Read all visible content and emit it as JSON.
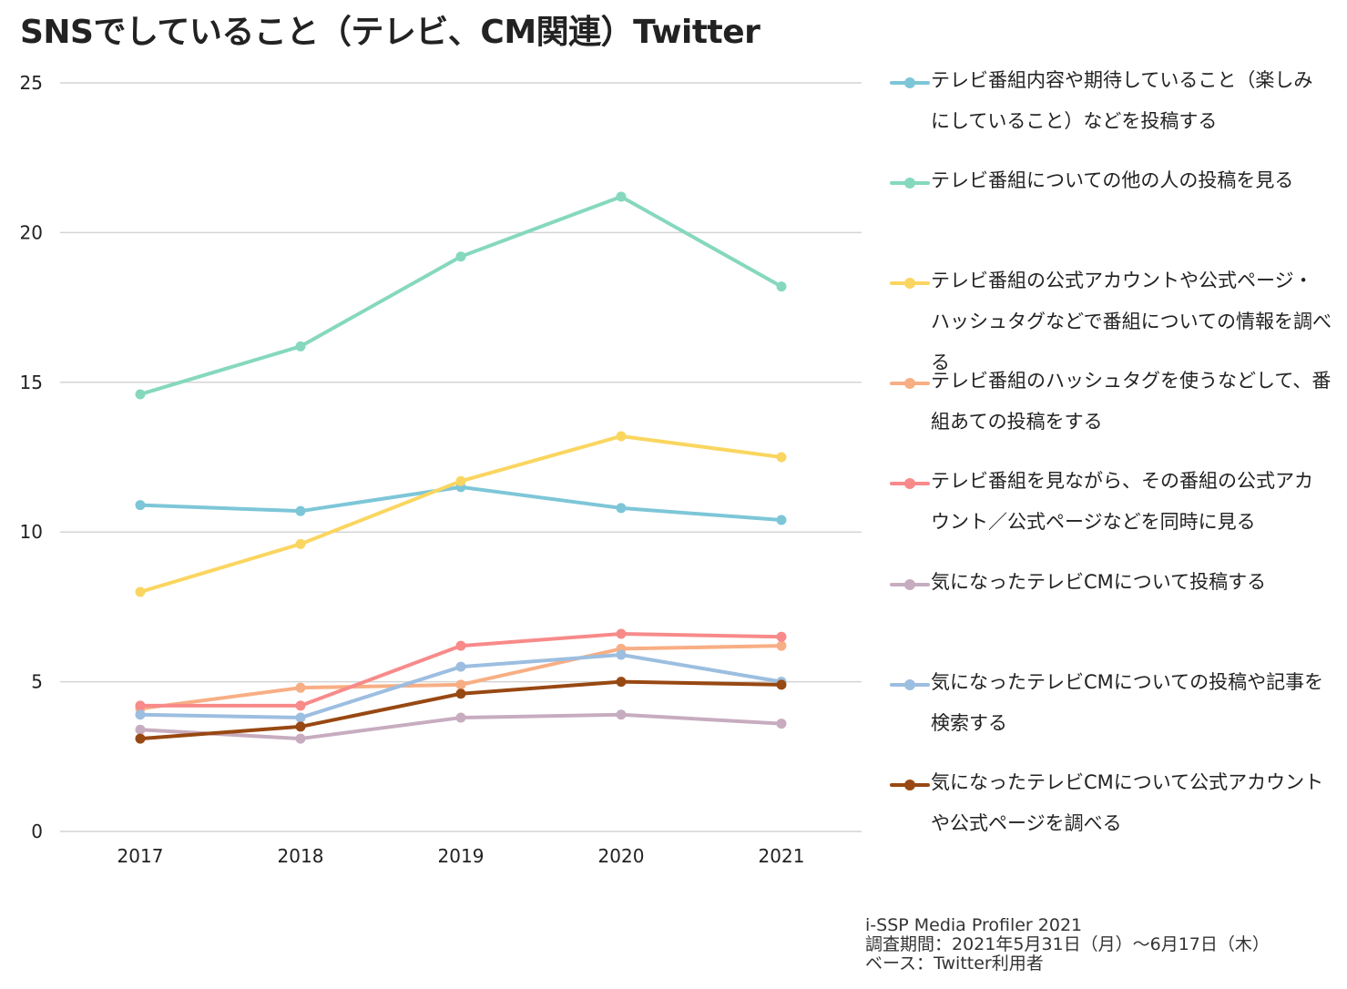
{
  "title": "SNSでしていること（テレビ、CM関連）Twitter",
  "source": {
    "line1": "i-SSP Media Profiler 2021",
    "line2": "調査期間：2021年5月31日（月）～6月17日（木）",
    "line3": "ベース：Twitter利用者"
  },
  "chart_data": {
    "type": "line",
    "title": "SNSでしていること（テレビ、CM関連）Twitter",
    "xlabel": "",
    "ylabel": "",
    "categories": [
      "2017",
      "2018",
      "2019",
      "2020",
      "2021"
    ],
    "ylim": [
      0,
      25
    ],
    "yticks": [
      0,
      5,
      10,
      15,
      20,
      25
    ],
    "grid": true,
    "legend_position": "right",
    "series": [
      {
        "name": " テレビ番組内容や期待していること（楽しみにしていること）などを投稿する",
        "color": "#7DC6D8",
        "values": [
          10.9,
          10.7,
          11.5,
          10.8,
          10.4
        ]
      },
      {
        "name": "テレビ番組についての他の人の投稿を見る",
        "color": "#85D8BE",
        "values": [
          14.6,
          16.2,
          19.2,
          21.2,
          18.2
        ]
      },
      {
        "name": "テレビ番組の公式アカウントや公式ページ・ハッシュタグなどで番組についての情報を調べる",
        "color": "#FAD660",
        "values": [
          8.0,
          9.6,
          11.7,
          13.2,
          12.5
        ]
      },
      {
        "name": "テレビ番組のハッシュタグを使うなどして、番組あての投稿をする",
        "color": "#F8AE84",
        "values": [
          4.1,
          4.8,
          4.9,
          6.1,
          6.2
        ]
      },
      {
        "name": "テレビ番組を見ながら、その番組の公式アカウント／公式ページなどを同時に見る",
        "color": "#F88A8A",
        "values": [
          4.2,
          4.2,
          6.2,
          6.6,
          6.5
        ]
      },
      {
        "name": "気になったテレビCMについて投稿する",
        "color": "#C7ACBF",
        "values": [
          3.4,
          3.1,
          3.8,
          3.9,
          3.6
        ]
      },
      {
        "name": " 気になったテレビCMについての投稿や記事を検索する",
        "color": "#9CBEE0",
        "values": [
          3.9,
          3.8,
          5.5,
          5.9,
          5.0
        ]
      },
      {
        "name": "気になったテレビCMについて公式アカウントや公式ページを調べる",
        "color": "#984812",
        "values": [
          3.1,
          3.5,
          4.6,
          5.0,
          4.9
        ]
      }
    ]
  }
}
